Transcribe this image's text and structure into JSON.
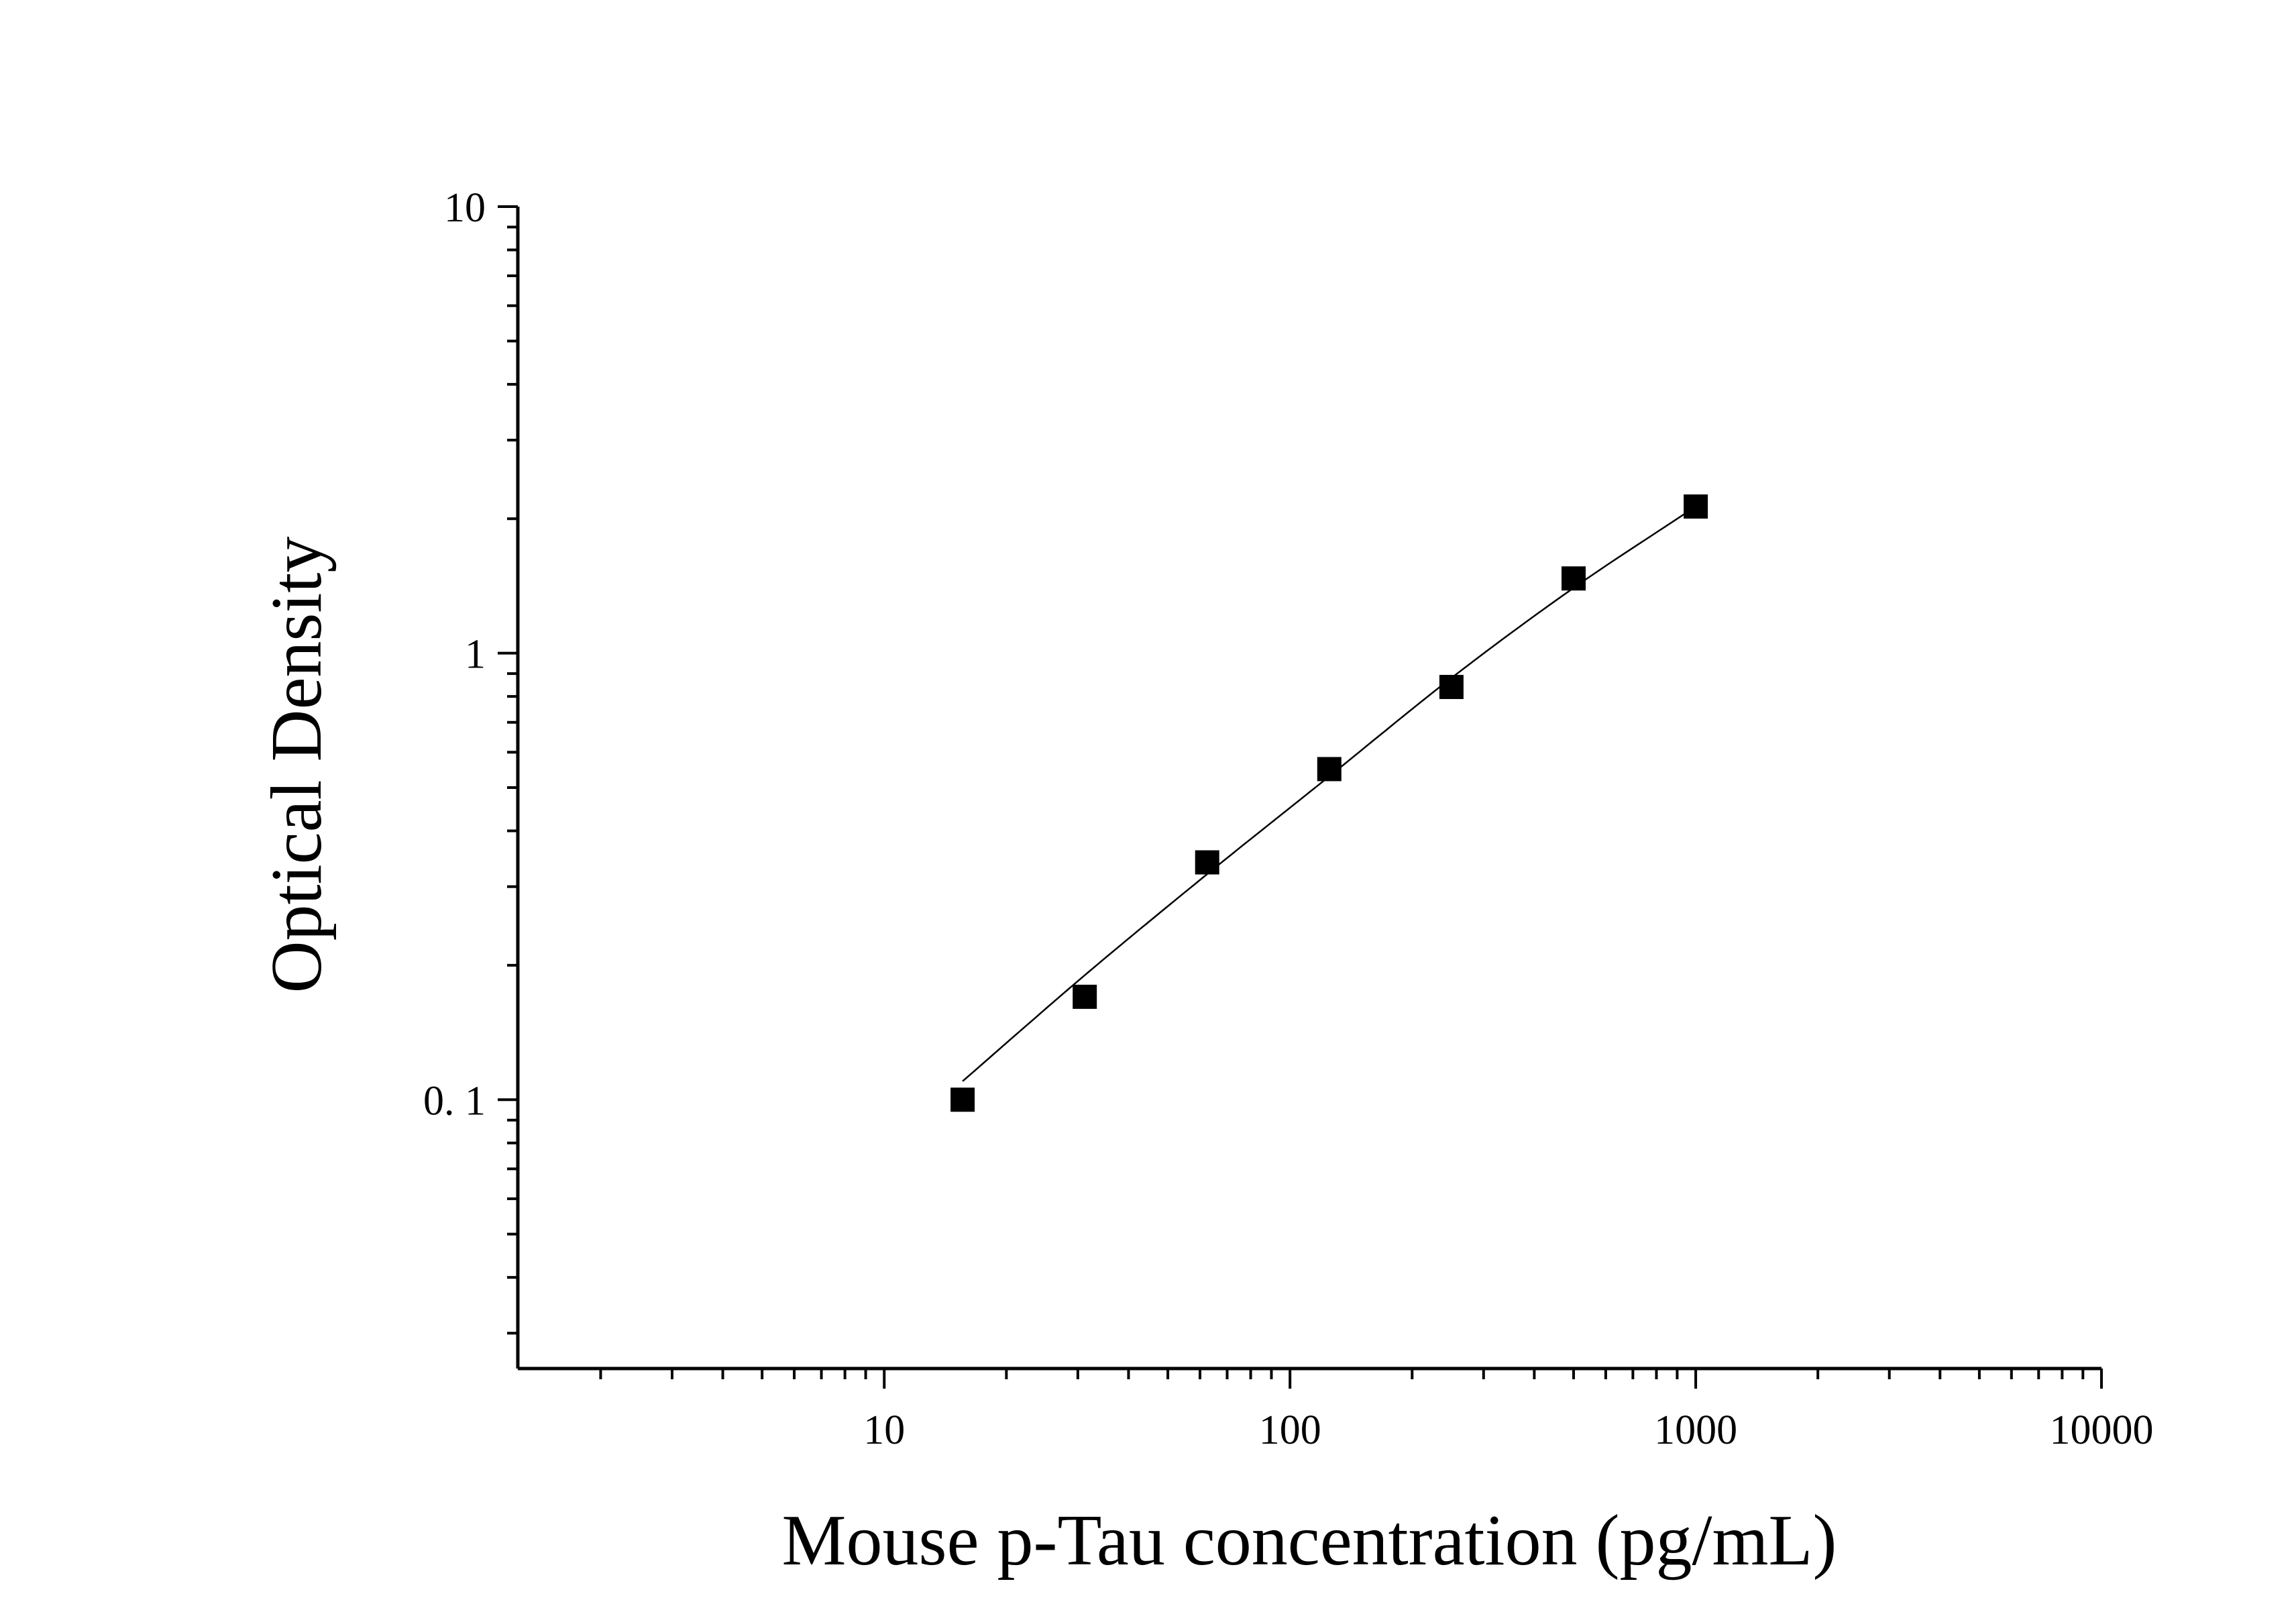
{
  "chart_data": {
    "type": "scatter",
    "title": "",
    "xlabel": "Mouse p-Tau concentration (pg/mL)",
    "ylabel": "Optical Density",
    "x_scale": "log",
    "y_scale": "log",
    "xlim": [
      1.25,
      10000
    ],
    "ylim": [
      0.025,
      10
    ],
    "x_ticks": [
      {
        "value": 10,
        "label": "10"
      },
      {
        "value": 100,
        "label": "100"
      },
      {
        "value": 1000,
        "label": "1000"
      },
      {
        "value": 10000,
        "label": "10000"
      }
    ],
    "y_ticks": [
      {
        "value": 0.1,
        "label": "0. 1"
      },
      {
        "value": 1,
        "label": "1"
      },
      {
        "value": 10,
        "label": "10"
      }
    ],
    "grid": false,
    "series": [
      {
        "x": [
          15.6,
          31.2,
          62.5,
          125,
          250,
          500,
          1000
        ],
        "y": [
          0.1,
          0.17,
          0.34,
          0.55,
          0.84,
          1.47,
          2.13
        ],
        "marker": "square",
        "color": "#000000"
      }
    ],
    "fit_curve": {
      "x": [
        15.6,
        31.2,
        62.5,
        125,
        250,
        500,
        1000
      ],
      "y": [
        0.11,
        0.19,
        0.32,
        0.53,
        0.88,
        1.4,
        2.13
      ],
      "color": "#000000"
    }
  }
}
